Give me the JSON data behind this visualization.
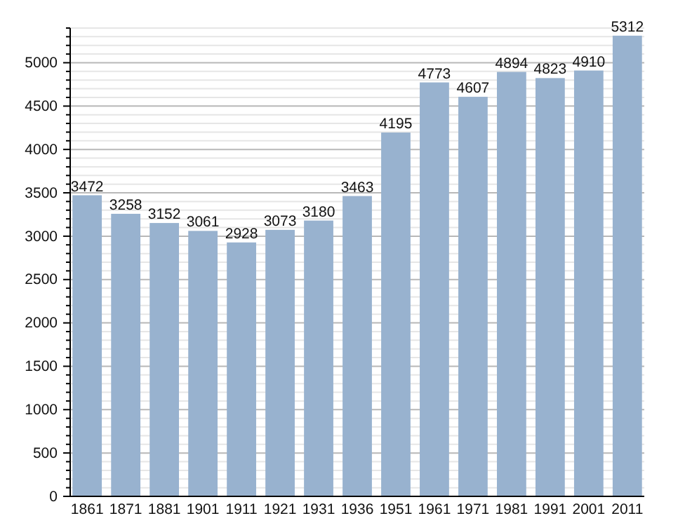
{
  "chart_data": {
    "type": "bar",
    "categories": [
      "1861",
      "1871",
      "1881",
      "1901",
      "1911",
      "1921",
      "1931",
      "1936",
      "1951",
      "1961",
      "1971",
      "1981",
      "1991",
      "2001",
      "2011"
    ],
    "values": [
      3472,
      3258,
      3152,
      3061,
      2928,
      3073,
      3180,
      3463,
      4195,
      4773,
      4607,
      4894,
      4823,
      4910,
      5312
    ],
    "color": "#98b2cf",
    "data_labels": true,
    "grid": "y",
    "ylim": [
      0,
      5400
    ],
    "yticks": [
      0,
      {
        "value": 100,
        "label": null
      },
      {
        "value": 200,
        "label": null
      },
      {
        "value": 300,
        "label": null
      },
      {
        "value": 400,
        "label": null
      },
      500,
      {
        "value": 600,
        "label": null
      },
      {
        "value": 700,
        "label": null
      },
      {
        "value": 800,
        "label": null
      },
      {
        "value": 900,
        "label": null
      },
      1000,
      {
        "value": 1100,
        "label": null
      },
      {
        "value": 1200,
        "label": null
      },
      {
        "value": 1300,
        "label": null
      },
      {
        "value": 1400,
        "label": null
      },
      1500,
      {
        "value": 1600,
        "label": null
      },
      {
        "value": 1700,
        "label": null
      },
      {
        "value": 1800,
        "label": null
      },
      {
        "value": 1900,
        "label": null
      },
      2000,
      {
        "value": 2100,
        "label": null
      },
      {
        "value": 2200,
        "label": null
      },
      {
        "value": 2300,
        "label": null
      },
      {
        "value": 2400,
        "label": null
      },
      2500,
      {
        "value": 2600,
        "label": null
      },
      {
        "value": 2700,
        "label": null
      },
      {
        "value": 2800,
        "label": null
      },
      {
        "value": 2900,
        "label": null
      },
      3000,
      {
        "value": 3100,
        "label": null
      },
      {
        "value": 3200,
        "label": null
      },
      {
        "value": 3300,
        "label": null
      },
      {
        "value": 3400,
        "label": null
      },
      3500,
      {
        "value": 3600,
        "label": null
      },
      {
        "value": 3700,
        "label": null
      },
      {
        "value": 3800,
        "label": null
      },
      {
        "value": 3900,
        "label": null
      },
      4000,
      {
        "value": 4100,
        "label": null
      },
      {
        "value": 4200,
        "label": null
      },
      {
        "value": 4300,
        "label": null
      },
      {
        "value": 4400,
        "label": null
      },
      4500,
      {
        "value": 4600,
        "label": null
      },
      {
        "value": 4700,
        "label": null
      },
      {
        "value": 4800,
        "label": null
      },
      {
        "value": 4900,
        "label": null
      },
      5000,
      {
        "value": 5100,
        "label": null
      },
      {
        "value": 5200,
        "label": null
      },
      {
        "value": 5300,
        "label": null
      },
      {
        "value": 5400,
        "label": null
      }
    ]
  }
}
